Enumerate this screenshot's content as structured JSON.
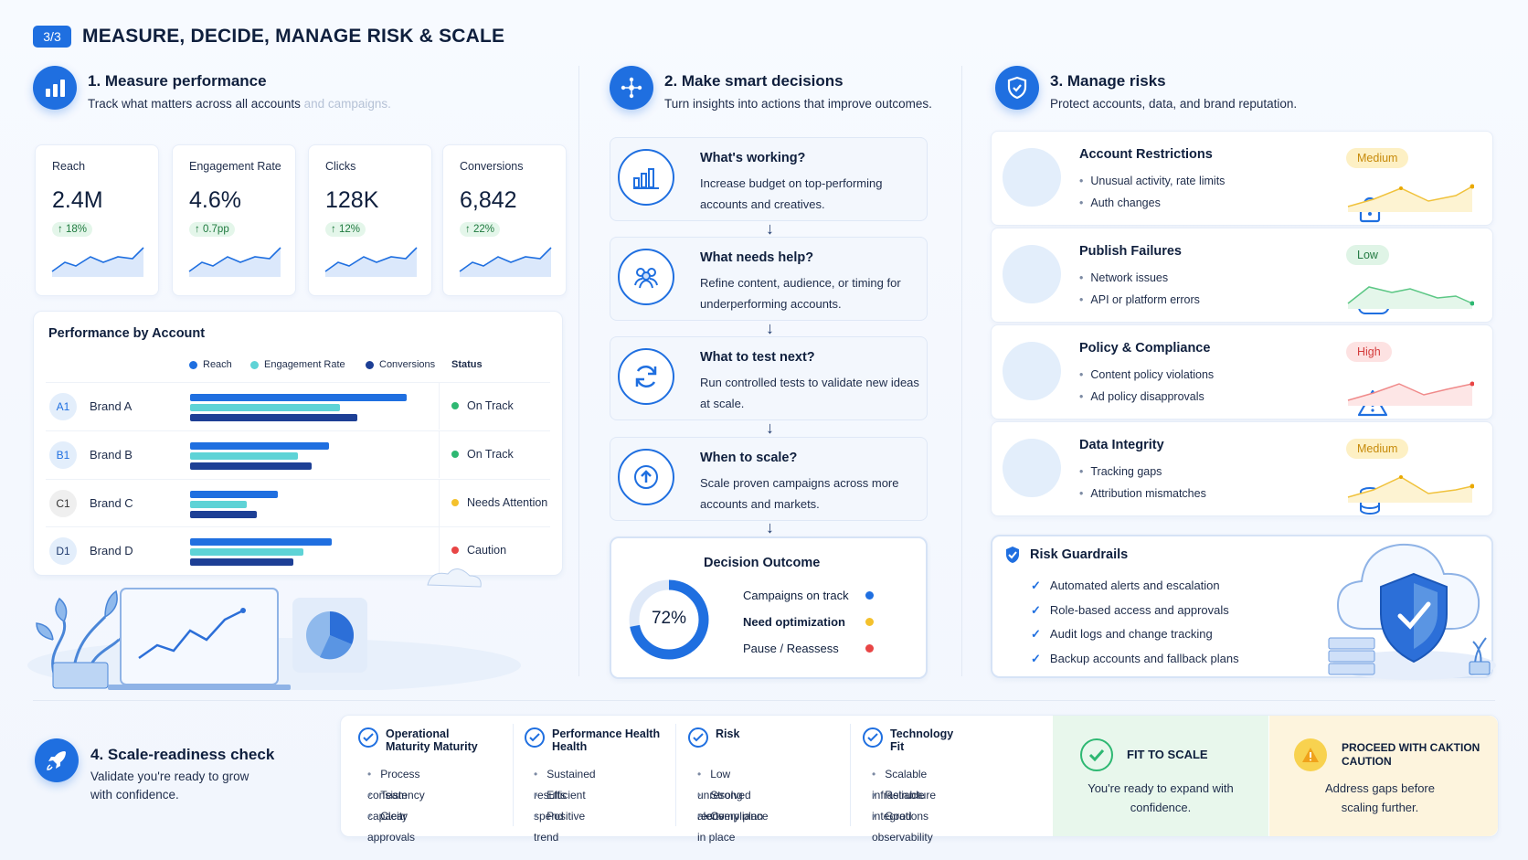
{
  "header": {
    "step_badge": "3/3",
    "title": "MEASURE, DECIDE, MANAGE RISK & SCALE"
  },
  "measure": {
    "title": "1. Measure performance",
    "subtitle_main": "Track what matters across all accounts",
    "subtitle_fade": " and campaigns.",
    "kpis": [
      {
        "label": "Reach",
        "value": "2.4M",
        "delta": "↑ 18%"
      },
      {
        "label": "Engagement Rate",
        "value": "4.6%",
        "delta": "↑ 0.7pp"
      },
      {
        "label": "Clicks",
        "value": "128K",
        "delta": "↑ 12%"
      },
      {
        "label": "Conversions",
        "value": "6,842",
        "delta": "↑ 22%"
      }
    ],
    "table": {
      "title": "Performance by Account",
      "legend": [
        "Reach",
        "Engagement Rate",
        "Conversions"
      ],
      "status_header": "Status",
      "rows": [
        {
          "avatar": "A1",
          "name": "Brand A",
          "status": "On Track",
          "reach": 0.84,
          "engagement": 0.58,
          "conversions": 0.65
        },
        {
          "avatar": "B1",
          "name": "Brand B",
          "status": "On Track",
          "reach": 0.54,
          "engagement": 0.42,
          "conversions": 0.47
        },
        {
          "avatar": "C1",
          "name": "Brand C",
          "status": "Needs Attention",
          "reach": 0.34,
          "engagement": 0.22,
          "conversions": 0.26
        },
        {
          "avatar": "D1",
          "name": "Brand D",
          "status": "Caution",
          "reach": 0.55,
          "engagement": 0.44,
          "conversions": 0.4
        }
      ]
    }
  },
  "decide": {
    "title": "2. Make smart decisions",
    "subtitle": "Turn insights into actions that improve outcomes.",
    "cards": [
      {
        "title": "What's working?",
        "desc": "Increase budget on top-performing accounts and creatives."
      },
      {
        "title": "What needs help?",
        "desc": "Refine content, audience, or timing for underperforming accounts."
      },
      {
        "title": "What to test next?",
        "desc": "Run controlled tests to validate new ideas at scale."
      },
      {
        "title": "When to scale?",
        "desc": "Scale proven campaigns across more accounts and markets."
      }
    ],
    "outcome": {
      "title": "Decision Outcome",
      "percent": "72%",
      "percent_value": 0.72,
      "items": [
        "Campaigns on track",
        "Need optimization",
        "Pause / Reassess"
      ]
    }
  },
  "risk": {
    "title": "3. Manage risks",
    "subtitle": "Protect accounts, data, and brand reputation.",
    "cards": [
      {
        "title": "Account Restrictions",
        "items": [
          "Unusual activity, rate limits",
          "Auth changes"
        ],
        "level": "Medium"
      },
      {
        "title": "Publish Failures",
        "items": [
          "Network issues",
          "API or platform errors"
        ],
        "level": "Low"
      },
      {
        "title": "Policy & Compliance",
        "items": [
          "Content policy violations",
          "Ad policy disapprovals"
        ],
        "level": "High"
      },
      {
        "title": "Data Integrity",
        "items": [
          "Tracking gaps",
          "Attribution mismatches"
        ],
        "level": "Medium"
      }
    ],
    "guardrails": {
      "title": "Risk Guardrails",
      "items": [
        "Automated alerts and escalation",
        "Role-based access and approvals",
        "Audit logs and change tracking",
        "Backup accounts and fallback plans"
      ]
    }
  },
  "scale": {
    "title": "4. Scale-readiness check",
    "subtitle": "Validate you're ready to grow with confidence.",
    "columns": [
      {
        "title": "Operational Maturity Maturity",
        "items": [
          "Process consistency",
          "Team capacity",
          "Clear approvals"
        ]
      },
      {
        "title": "Performance Health Health",
        "items": [
          "Sustained results",
          "Efficient spend",
          "Positive trend"
        ]
      },
      {
        "title": "Risk",
        "items": [
          "Low unresolved alerts",
          "Strong recovery plan",
          "Compliance in place"
        ]
      },
      {
        "title": "Technology Fit",
        "items": [
          "Scalable infrastructure",
          "Reliable integrations",
          "Good observability"
        ]
      }
    ],
    "fit": {
      "title": "FIT TO SCALE",
      "desc": "You're ready to expand with confidence."
    },
    "caution": {
      "title": "PROCEED WITH CAKTION CAUTION",
      "desc": "Address gaps before scaling further."
    }
  },
  "colors": {
    "primary": "#1f6fe0",
    "teal": "#5ed3d6",
    "navy": "#1d3f95",
    "green": "#2eb872",
    "amber": "#f4c12c",
    "red": "#e84545"
  }
}
